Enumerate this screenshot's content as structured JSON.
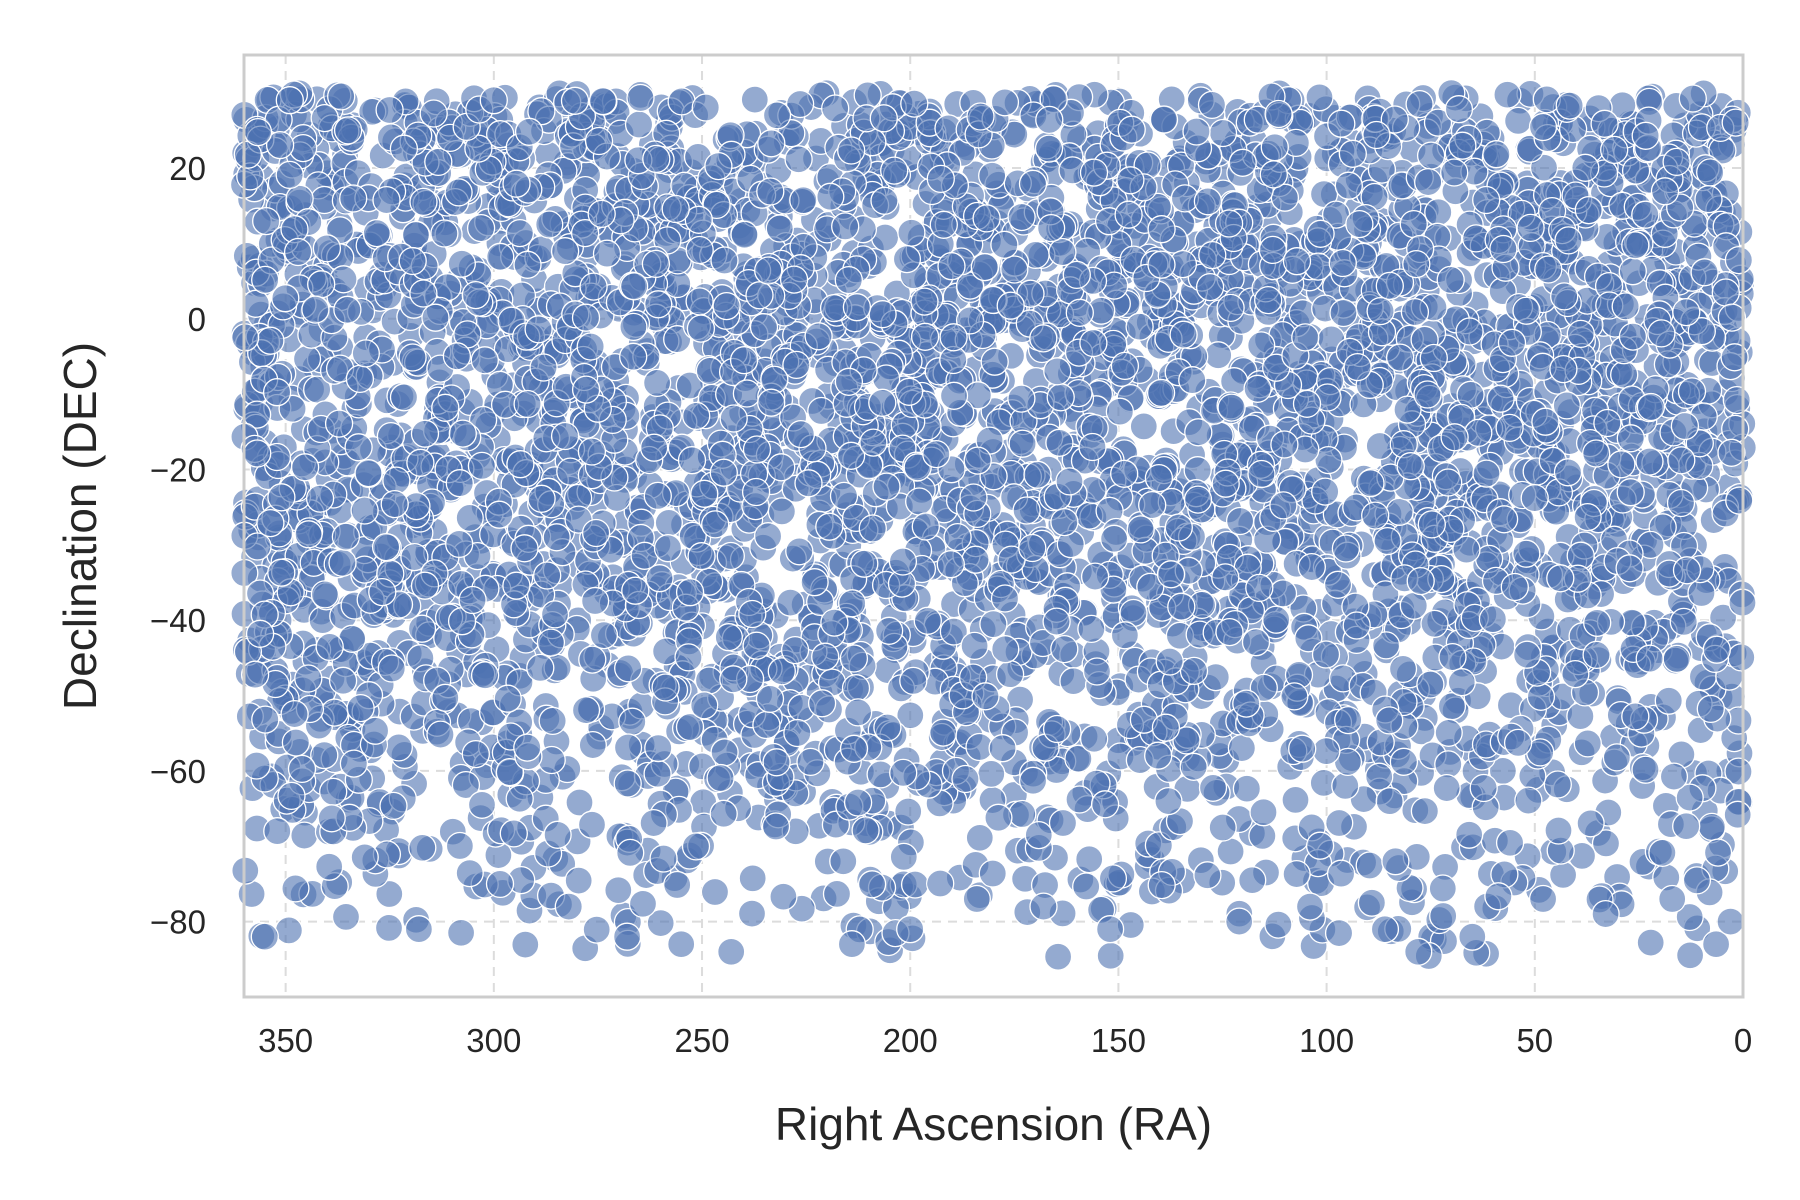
{
  "chart_data": {
    "type": "scatter",
    "title": "",
    "xlabel": "Right Ascension (RA)",
    "ylabel": "Declination (DEC)",
    "xlim": [
      360,
      0
    ],
    "ylim": [
      -90,
      35
    ],
    "x_inverted": true,
    "grid": true,
    "legend": "none",
    "colors": {
      "marker": "#4c72b0",
      "grid": "#dcdcdc",
      "frame": "#cccccc",
      "text": "#262626"
    },
    "marker_alpha": 0.6,
    "x_ticks": [
      {
        "value": 350,
        "label": "350"
      },
      {
        "value": 300,
        "label": "300"
      },
      {
        "value": 250,
        "label": "250"
      },
      {
        "value": 200,
        "label": "200"
      },
      {
        "value": 150,
        "label": "150"
      },
      {
        "value": 100,
        "label": "100"
      },
      {
        "value": 50,
        "label": "50"
      },
      {
        "value": 0,
        "label": "0"
      }
    ],
    "y_ticks": [
      {
        "value": 20,
        "label": "20"
      },
      {
        "value": 0,
        "label": "0"
      },
      {
        "value": -20,
        "label": "−20"
      },
      {
        "value": -40,
        "label": "−40"
      },
      {
        "value": -60,
        "label": "−60"
      },
      {
        "value": -80,
        "label": "−80"
      }
    ],
    "series": [
      {
        "n_points": 5000,
        "x_range": [
          0,
          360
        ],
        "y_range": [
          -85,
          30
        ],
        "y_distribution": "uniform in sin(dec)",
        "x": [
          355.0,
          352.0,
          349.0,
          335.0,
          318.0,
          300.0,
          282.0,
          268.0,
          255.0,
          243.0,
          232.0,
          214.0,
          200.0,
          184.0,
          168.0,
          152.0,
          138.0,
          121.0,
          104.0,
          86.0,
          78.0,
          65.0,
          48.0,
          33.0,
          17.0,
          3.0
        ],
        "y": [
          -82.0,
          -68.0,
          29.0,
          25.0,
          -81.0,
          29.0,
          -78.0,
          -82.0,
          -83.0,
          -84.0,
          27.0,
          -83.0,
          -81.0,
          -77.0,
          -78.0,
          -81.0,
          -64.0,
          -80.0,
          -78.0,
          -81.0,
          -84.0,
          -82.0,
          -77.0,
          -79.0,
          -77.0,
          -80.0
        ]
      }
    ]
  }
}
